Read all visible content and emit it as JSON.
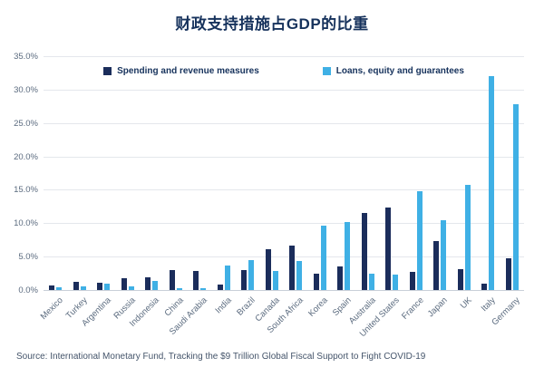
{
  "chart_data": {
    "type": "bar",
    "title": "财政支持措施占GDP的比重",
    "categories": [
      "Mexico",
      "Turkey",
      "Argentina",
      "Russia",
      "Indonesia",
      "China",
      "Saudi Arabia",
      "India",
      "Brazil",
      "Canada",
      "South Africa",
      "Korea",
      "Spain",
      "Australia",
      "United States",
      "France",
      "Japan",
      "UK",
      "Italy",
      "Germany"
    ],
    "series": [
      {
        "name": "Spending and revenue measures",
        "color": "#1b2d5b",
        "values": [
          0.7,
          1.2,
          1.1,
          1.7,
          1.9,
          3.0,
          2.8,
          0.8,
          3.0,
          6.1,
          6.6,
          2.4,
          3.5,
          11.5,
          12.4,
          2.7,
          7.3,
          3.1,
          0.9,
          4.7
        ]
      },
      {
        "name": "Loans, equity and guarantees",
        "color": "#3fb0e5",
        "values": [
          0.4,
          0.5,
          1.0,
          0.5,
          1.3,
          0.3,
          0.3,
          3.6,
          4.5,
          2.9,
          4.3,
          9.7,
          10.2,
          2.4,
          2.3,
          14.8,
          10.4,
          15.7,
          32.0,
          27.8
        ]
      }
    ],
    "ylim": [
      0,
      35
    ],
    "ytick_step": 5,
    "ytick_format": "one_decimal_percent",
    "grid": true,
    "legend_position": "top-center",
    "xlabel": "",
    "ylabel": ""
  },
  "source": "Source: International Monetary Fund, Tracking the $9 Trillion Global Fiscal Support to Fight COVID-19",
  "colors": {
    "title_text": "#16325c",
    "axis_text": "#5b6b7f",
    "grid_line": "#e4e7ec",
    "series_dark": "#1b2d5b",
    "series_light": "#3fb0e5"
  }
}
